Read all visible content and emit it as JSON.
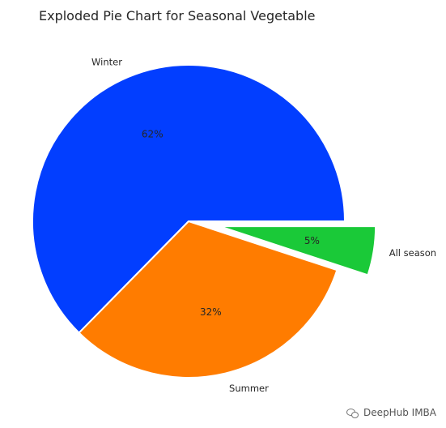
{
  "chart_data": {
    "type": "pie",
    "title": "Exploded Pie Chart for Seasonal Vegetable",
    "slices": [
      {
        "label": "Winter",
        "value": 62,
        "pct_label": "62%",
        "color": "#023eff",
        "explode": 0.0
      },
      {
        "label": "Summer",
        "value": 32,
        "pct_label": "32%",
        "color": "#ff7c00",
        "explode": 0.0
      },
      {
        "label": "All season",
        "value": 5,
        "pct_label": "5%",
        "color": "#1ac938",
        "explode": 0.2
      }
    ],
    "start_angle_deg": 0,
    "direction": "counterclockwise",
    "edge_color": "#ffffff"
  },
  "watermark": {
    "text": "DeepHub IMBA",
    "icon": "wechat-icon"
  }
}
